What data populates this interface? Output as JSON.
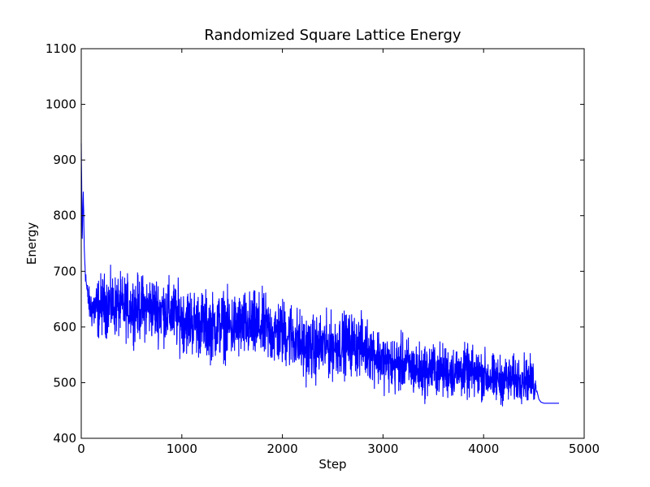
{
  "chart_data": {
    "type": "line",
    "title": "Randomized Square Lattice Energy",
    "xlabel": "Step",
    "ylabel": "Energy",
    "xlim": [
      0,
      5000
    ],
    "ylim": [
      400,
      1100
    ],
    "xticks": [
      "0",
      "1000",
      "2000",
      "3000",
      "4000",
      "5000"
    ],
    "yticks": [
      "400",
      "500",
      "600",
      "700",
      "800",
      "900",
      "1000",
      "1100"
    ],
    "grid": false,
    "series": [
      {
        "color": "#0000ff",
        "x": [
          0,
          10,
          20,
          30,
          40,
          50,
          60,
          80,
          100,
          150,
          200,
          300,
          400,
          500,
          600,
          700,
          800,
          900,
          1000,
          1100,
          1200,
          1300,
          1400,
          1500,
          1600,
          1700,
          1800,
          1900,
          2000,
          2100,
          2200,
          2300,
          2400,
          2500,
          2600,
          2700,
          2800,
          2900,
          3000,
          3100,
          3200,
          3300,
          3400,
          3500,
          3600,
          3700,
          3800,
          3900,
          4000,
          4100,
          4200,
          4300,
          4400,
          4500,
          4530,
          4550,
          4570,
          4600,
          4650,
          4750
        ],
        "y": [
          930,
          760,
          845,
          740,
          700,
          680,
          660,
          640,
          635,
          630,
          640,
          640,
          635,
          635,
          635,
          635,
          630,
          625,
          615,
          610,
          605,
          600,
          605,
          600,
          602,
          600,
          600,
          590,
          590,
          585,
          565,
          560,
          565,
          565,
          570,
          570,
          565,
          555,
          540,
          530,
          535,
          525,
          520,
          525,
          520,
          520,
          520,
          515,
          515,
          505,
          505,
          505,
          510,
          500,
          485,
          470,
          465,
          463,
          463,
          463
        ]
      }
    ],
    "noise": {
      "x": [
        0,
        150,
        1000,
        2000,
        3000,
        4000,
        4500,
        4530
      ],
      "amplitude": [
        0,
        55,
        60,
        62,
        52,
        45,
        40,
        0
      ]
    }
  }
}
